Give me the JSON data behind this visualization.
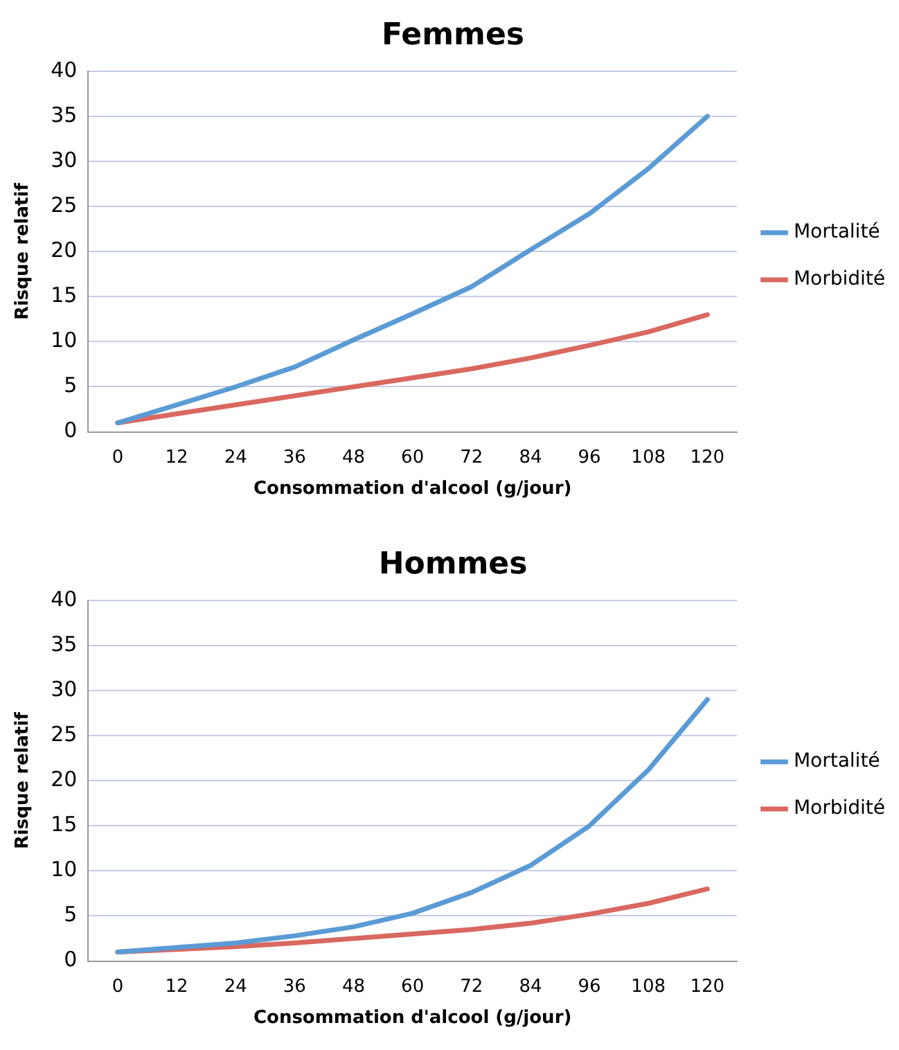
{
  "chart_data": [
    {
      "type": "line",
      "title": "Femmes",
      "xlabel": "Consommation d'alcool (g/jour)",
      "ylabel": "Risque relatif",
      "categories": [
        "0",
        "12",
        "24",
        "36",
        "48",
        "60",
        "72",
        "84",
        "96",
        "108",
        "120"
      ],
      "ylim": [
        0,
        40
      ],
      "yticks": [
        0,
        5,
        10,
        15,
        20,
        25,
        30,
        35,
        40
      ],
      "grid": "y",
      "legend": "right",
      "marker": "none",
      "line_style": "solid",
      "series": [
        {
          "name": "Mortalité",
          "color": "#5b9bd5",
          "values": [
            1,
            3,
            5,
            7.2,
            10.2,
            13.1,
            16.1,
            20.2,
            24.2,
            29.2,
            35
          ]
        },
        {
          "name": "Morbidité",
          "color": "#d9685f",
          "values": [
            1,
            2,
            3,
            4,
            5,
            6,
            7,
            8.2,
            9.6,
            11.1,
            13
          ]
        }
      ]
    },
    {
      "type": "line",
      "title": "Hommes",
      "xlabel": "Consommation d'alcool (g/jour)",
      "ylabel": "Risque relatif",
      "categories": [
        "0",
        "12",
        "24",
        "36",
        "48",
        "60",
        "72",
        "84",
        "96",
        "108",
        "120"
      ],
      "ylim": [
        0,
        40
      ],
      "yticks": [
        0,
        5,
        10,
        15,
        20,
        25,
        30,
        35,
        40
      ],
      "grid": "y",
      "legend": "right",
      "marker": "none",
      "line_style": "solid",
      "series": [
        {
          "name": "Mortalité",
          "color": "#5b9bd5",
          "values": [
            1,
            1.5,
            2,
            2.8,
            3.8,
            5.3,
            7.6,
            10.6,
            15,
            21.2,
            29
          ]
        },
        {
          "name": "Morbidité",
          "color": "#d9685f",
          "values": [
            1,
            1.3,
            1.6,
            2,
            2.5,
            3,
            3.5,
            4.2,
            5.2,
            6.4,
            8
          ]
        }
      ]
    }
  ]
}
